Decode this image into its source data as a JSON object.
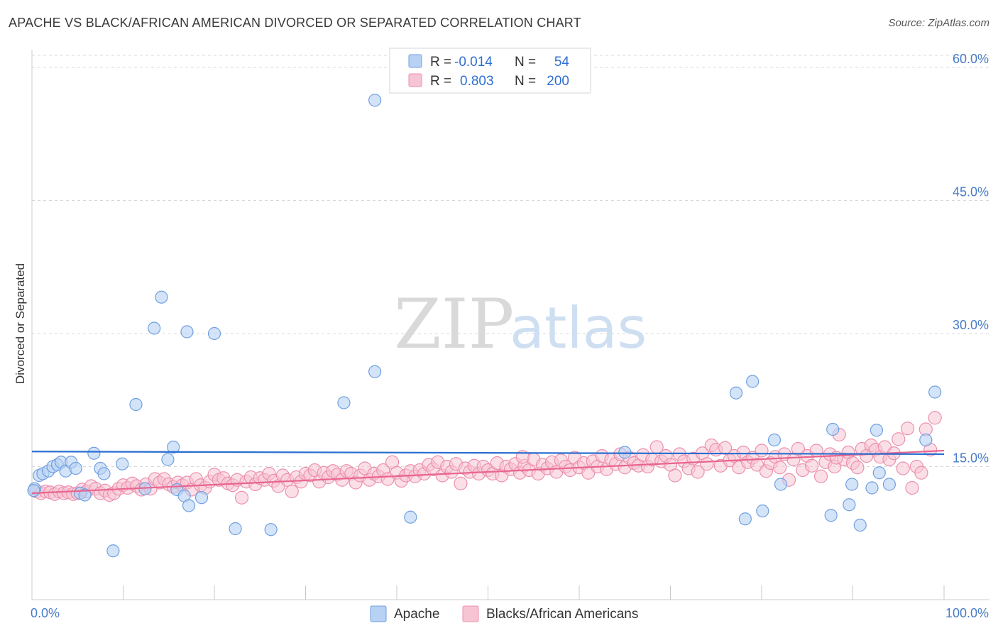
{
  "header": {
    "title": "APACHE VS BLACK/AFRICAN AMERICAN DIVORCED OR SEPARATED CORRELATION CHART",
    "source": "Source: ZipAtlas.com"
  },
  "watermark": {
    "zip": "ZIP",
    "atlas": "atlas"
  },
  "legend": {
    "rows": [
      {
        "r_label": "R =",
        "r_value": "-0.014",
        "n_label": "N =",
        "n_value": "54"
      },
      {
        "r_label": "R =",
        "r_value": "0.803",
        "n_label": "N =",
        "n_value": "200"
      }
    ]
  },
  "bottom_legend": [
    "Apache",
    "Blacks/African Americans"
  ],
  "colors": {
    "apache_fill": "#b8d2f3",
    "apache_stroke": "#6f9fe0",
    "apache_line": "#2a6fd0",
    "black_fill": "#f7c4d4",
    "black_stroke": "#ec8fae",
    "black_line": "#e8658f",
    "grid": "#d8d8d8",
    "tick_label": "#4a7cc9"
  },
  "chart_data": {
    "type": "scatter",
    "title": "APACHE VS BLACK/AFRICAN AMERICAN DIVORCED OR SEPARATED CORRELATION CHART",
    "xlabel": "",
    "ylabel": "Divorced or Separated",
    "xlim": [
      0,
      100
    ],
    "ylim": [
      0,
      62
    ],
    "x_tick_labels": [
      "0.0%",
      "100.0%"
    ],
    "y_ticks": [
      15,
      30,
      45,
      60
    ],
    "y_tick_labels": [
      "15.0%",
      "30.0%",
      "45.0%",
      "60.0%"
    ],
    "grid": "horizontal dashed",
    "legend_position": "top-center",
    "series": [
      {
        "name": "Apache",
        "R": -0.014,
        "N": 54,
        "trend": {
          "x": [
            0,
            100
          ],
          "y": [
            16.7,
            16.4
          ]
        },
        "points": [
          [
            0.3,
            12.5
          ],
          [
            0.8,
            14.0
          ],
          [
            1.2,
            14.2
          ],
          [
            1.8,
            14.5
          ],
          [
            2.3,
            15.0
          ],
          [
            2.8,
            15.2
          ],
          [
            3.2,
            15.5
          ],
          [
            3.7,
            14.5
          ],
          [
            4.3,
            15.5
          ],
          [
            4.8,
            14.8
          ],
          [
            5.3,
            12.0
          ],
          [
            5.8,
            11.8
          ],
          [
            6.8,
            16.5
          ],
          [
            7.5,
            14.8
          ],
          [
            7.9,
            14.2
          ],
          [
            8.9,
            5.5
          ],
          [
            9.9,
            15.3
          ],
          [
            11.4,
            22.0
          ],
          [
            12.4,
            12.5
          ],
          [
            13.4,
            30.6
          ],
          [
            14.2,
            34.1
          ],
          [
            14.9,
            15.8
          ],
          [
            15.5,
            17.2
          ],
          [
            15.9,
            12.4
          ],
          [
            16.7,
            11.7
          ],
          [
            17.2,
            10.6
          ],
          [
            17.0,
            30.2
          ],
          [
            18.6,
            11.5
          ],
          [
            20.0,
            30.0
          ],
          [
            22.3,
            8.0
          ],
          [
            26.2,
            7.9
          ],
          [
            34.2,
            22.2
          ],
          [
            37.6,
            25.7
          ],
          [
            37.6,
            56.3
          ],
          [
            41.5,
            9.3
          ],
          [
            65.0,
            16.6
          ],
          [
            77.2,
            23.3
          ],
          [
            78.2,
            9.1
          ],
          [
            79.0,
            24.6
          ],
          [
            80.1,
            10.0
          ],
          [
            81.4,
            18.0
          ],
          [
            82.1,
            13.0
          ],
          [
            87.8,
            19.2
          ],
          [
            87.6,
            9.5
          ],
          [
            89.6,
            10.7
          ],
          [
            89.9,
            13.0
          ],
          [
            90.8,
            8.4
          ],
          [
            92.6,
            19.1
          ],
          [
            92.9,
            14.3
          ],
          [
            92.1,
            12.6
          ],
          [
            94.0,
            13.0
          ],
          [
            98.0,
            18.0
          ],
          [
            99.0,
            23.4
          ],
          [
            0.2,
            12.3
          ]
        ]
      },
      {
        "name": "Blacks/African Americans",
        "R": 0.803,
        "N": 200,
        "trend": {
          "x": [
            0,
            100
          ],
          "y": [
            12.0,
            16.8
          ]
        },
        "points": [
          [
            0.5,
            12.2
          ],
          [
            1.0,
            12.0
          ],
          [
            1.5,
            12.2
          ],
          [
            2.0,
            12.1
          ],
          [
            2.5,
            11.9
          ],
          [
            3.0,
            12.2
          ],
          [
            3.5,
            12.0
          ],
          [
            4.0,
            12.1
          ],
          [
            4.5,
            11.9
          ],
          [
            5.0,
            12.0
          ],
          [
            5.5,
            12.4
          ],
          [
            6.0,
            12.2
          ],
          [
            6.5,
            12.8
          ],
          [
            7.0,
            12.5
          ],
          [
            7.5,
            12.0
          ],
          [
            8.0,
            12.3
          ],
          [
            8.5,
            11.8
          ],
          [
            9.0,
            12.0
          ],
          [
            9.5,
            12.5
          ],
          [
            10.0,
            12.9
          ],
          [
            10.5,
            12.6
          ],
          [
            11.0,
            13.1
          ],
          [
            11.5,
            12.8
          ],
          [
            12.0,
            12.4
          ],
          [
            12.5,
            13.0
          ],
          [
            13.0,
            12.5
          ],
          [
            13.5,
            13.6
          ],
          [
            14.0,
            13.2
          ],
          [
            14.5,
            13.6
          ],
          [
            15.0,
            13.0
          ],
          [
            15.5,
            12.7
          ],
          [
            16.0,
            13.2
          ],
          [
            16.5,
            12.9
          ],
          [
            17.0,
            13.2
          ],
          [
            17.5,
            12.4
          ],
          [
            18.0,
            13.6
          ],
          [
            18.5,
            12.9
          ],
          [
            19.0,
            12.6
          ],
          [
            19.5,
            13.3
          ],
          [
            20.0,
            14.1
          ],
          [
            20.5,
            13.5
          ],
          [
            21.0,
            13.7
          ],
          [
            21.5,
            13.1
          ],
          [
            22.0,
            12.9
          ],
          [
            22.5,
            13.5
          ],
          [
            23.0,
            11.5
          ],
          [
            23.5,
            13.3
          ],
          [
            24.0,
            13.8
          ],
          [
            24.5,
            13.0
          ],
          [
            25.0,
            13.7
          ],
          [
            25.5,
            13.5
          ],
          [
            26.0,
            14.2
          ],
          [
            26.5,
            13.4
          ],
          [
            27.0,
            12.8
          ],
          [
            27.5,
            14.0
          ],
          [
            28.0,
            13.5
          ],
          [
            28.5,
            12.2
          ],
          [
            29.0,
            13.8
          ],
          [
            29.5,
            13.3
          ],
          [
            30.0,
            14.2
          ],
          [
            30.5,
            14.0
          ],
          [
            31.0,
            14.6
          ],
          [
            31.5,
            13.3
          ],
          [
            32.0,
            14.3
          ],
          [
            32.5,
            13.8
          ],
          [
            33.0,
            14.5
          ],
          [
            33.5,
            14.1
          ],
          [
            34.0,
            13.5
          ],
          [
            34.5,
            14.5
          ],
          [
            35.0,
            14.2
          ],
          [
            35.5,
            13.2
          ],
          [
            36.0,
            14.0
          ],
          [
            36.5,
            14.8
          ],
          [
            37.0,
            13.5
          ],
          [
            37.5,
            14.2
          ],
          [
            38.0,
            13.9
          ],
          [
            38.5,
            14.6
          ],
          [
            39.0,
            13.6
          ],
          [
            39.5,
            15.5
          ],
          [
            40.0,
            14.3
          ],
          [
            40.5,
            13.4
          ],
          [
            41.0,
            14.0
          ],
          [
            41.5,
            14.5
          ],
          [
            42.0,
            13.9
          ],
          [
            42.5,
            14.6
          ],
          [
            43.0,
            14.2
          ],
          [
            43.5,
            15.2
          ],
          [
            44.0,
            14.7
          ],
          [
            44.5,
            15.5
          ],
          [
            45.0,
            14.0
          ],
          [
            45.5,
            15.0
          ],
          [
            46.0,
            14.4
          ],
          [
            46.5,
            15.3
          ],
          [
            47.0,
            13.1
          ],
          [
            47.5,
            14.8
          ],
          [
            48.0,
            14.4
          ],
          [
            48.5,
            15.1
          ],
          [
            49.0,
            14.2
          ],
          [
            49.5,
            15.0
          ],
          [
            50.0,
            14.6
          ],
          [
            50.5,
            14.2
          ],
          [
            51.0,
            15.4
          ],
          [
            51.5,
            14.0
          ],
          [
            52.0,
            15.0
          ],
          [
            52.5,
            14.7
          ],
          [
            53.0,
            15.3
          ],
          [
            53.5,
            14.3
          ],
          [
            54.0,
            15.1
          ],
          [
            54.5,
            14.6
          ],
          [
            55.0,
            15.8
          ],
          [
            55.5,
            14.2
          ],
          [
            56.0,
            15.2
          ],
          [
            56.5,
            14.8
          ],
          [
            57.0,
            15.5
          ],
          [
            57.5,
            14.4
          ],
          [
            58.0,
            15.7
          ],
          [
            58.5,
            15.0
          ],
          [
            59.0,
            14.6
          ],
          [
            59.5,
            16.0
          ],
          [
            60.0,
            14.9
          ],
          [
            60.5,
            15.4
          ],
          [
            61.0,
            14.3
          ],
          [
            61.5,
            15.6
          ],
          [
            62.0,
            15.0
          ],
          [
            62.5,
            16.2
          ],
          [
            63.0,
            14.7
          ],
          [
            63.5,
            15.8
          ],
          [
            64.0,
            15.3
          ],
          [
            64.5,
            16.4
          ],
          [
            65.0,
            14.9
          ],
          [
            65.5,
            16.0
          ],
          [
            66.0,
            15.4
          ],
          [
            66.5,
            15.1
          ],
          [
            67.0,
            16.3
          ],
          [
            67.5,
            15.0
          ],
          [
            68.0,
            15.8
          ],
          [
            68.5,
            17.2
          ],
          [
            69.0,
            15.6
          ],
          [
            69.5,
            16.2
          ],
          [
            70.0,
            15.2
          ],
          [
            70.5,
            14.0
          ],
          [
            71.0,
            16.4
          ],
          [
            71.5,
            15.6
          ],
          [
            72.0,
            14.8
          ],
          [
            72.5,
            15.9
          ],
          [
            73.0,
            14.4
          ],
          [
            73.5,
            16.5
          ],
          [
            74.0,
            15.3
          ],
          [
            74.5,
            17.4
          ],
          [
            75.0,
            16.9
          ],
          [
            75.5,
            15.1
          ],
          [
            76.0,
            17.1
          ],
          [
            76.5,
            15.7
          ],
          [
            77.0,
            16.2
          ],
          [
            77.5,
            14.9
          ],
          [
            78.0,
            16.6
          ],
          [
            78.5,
            15.5
          ],
          [
            79.0,
            16.0
          ],
          [
            79.5,
            15.2
          ],
          [
            80.0,
            16.8
          ],
          [
            80.5,
            14.5
          ],
          [
            81.0,
            15.4
          ],
          [
            81.5,
            16.1
          ],
          [
            82.0,
            14.9
          ],
          [
            82.5,
            16.4
          ],
          [
            83.0,
            13.5
          ],
          [
            83.5,
            15.8
          ],
          [
            84.0,
            17.0
          ],
          [
            84.5,
            14.6
          ],
          [
            85.0,
            16.2
          ],
          [
            85.5,
            15.1
          ],
          [
            86.0,
            16.8
          ],
          [
            86.5,
            13.9
          ],
          [
            87.0,
            15.5
          ],
          [
            87.5,
            16.4
          ],
          [
            88.0,
            15.0
          ],
          [
            88.5,
            18.6
          ],
          [
            89.0,
            15.8
          ],
          [
            89.5,
            16.6
          ],
          [
            90.0,
            15.4
          ],
          [
            90.5,
            14.9
          ],
          [
            91.0,
            17.0
          ],
          [
            91.5,
            16.2
          ],
          [
            92.0,
            17.4
          ],
          [
            92.5,
            16.9
          ],
          [
            93.0,
            16.1
          ],
          [
            93.5,
            17.2
          ],
          [
            94.0,
            15.8
          ],
          [
            94.5,
            16.5
          ],
          [
            95.0,
            18.1
          ],
          [
            95.5,
            14.8
          ],
          [
            96.0,
            19.3
          ],
          [
            96.5,
            12.6
          ],
          [
            97.0,
            15.0
          ],
          [
            97.5,
            14.3
          ],
          [
            98.0,
            19.2
          ],
          [
            98.5,
            16.9
          ],
          [
            99.0,
            20.5
          ],
          [
            88.2,
            16.0
          ],
          [
            53.8,
            16.1
          ]
        ]
      }
    ]
  }
}
